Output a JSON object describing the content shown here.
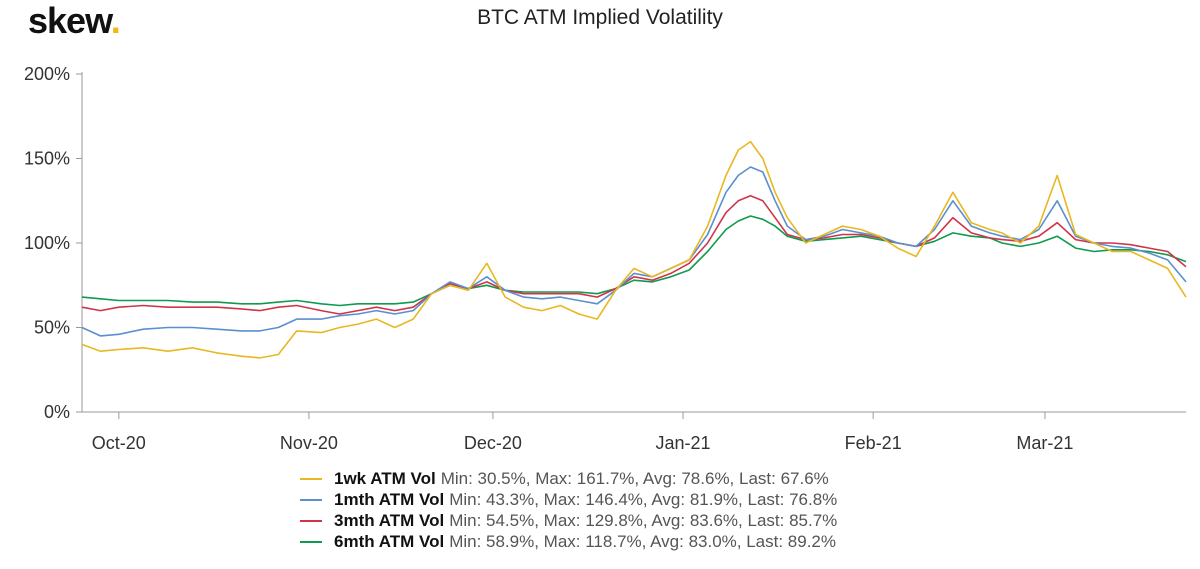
{
  "header": {
    "logo_text": "skew",
    "logo_dot": ".",
    "title": "BTC ATM Implied Volatility"
  },
  "colors": {
    "1wk": "#e8b820",
    "1mth": "#5b8fd0",
    "3mth": "#d0344a",
    "6mth": "#109a4e",
    "axis": "#999999"
  },
  "legend": [
    {
      "key": "1wk",
      "name": "1wk ATM Vol",
      "stats": "Min: 30.5%, Max: 161.7%, Avg: 78.6%, Last: 67.6%"
    },
    {
      "key": "1mth",
      "name": "1mth ATM Vol",
      "stats": "Min: 43.3%, Max: 146.4%, Avg: 81.9%, Last: 76.8%"
    },
    {
      "key": "3mth",
      "name": "3mth ATM Vol",
      "stats": "Min: 54.5%, Max: 129.8%, Avg: 83.6%, Last: 85.7%"
    },
    {
      "key": "6mth",
      "name": "6mth ATM Vol",
      "stats": "Min: 58.9%, Max: 118.7%, Avg: 83.0%, Last: 89.2%"
    }
  ],
  "chart_data": {
    "type": "line",
    "title": "BTC ATM Implied Volatility",
    "xlabel": "",
    "ylabel": "",
    "ylim": [
      0,
      200
    ],
    "xlim": [
      "2020-09-25",
      "2021-03-24"
    ],
    "y_ticks": [
      "0%",
      "50%",
      "100%",
      "150%",
      "200%"
    ],
    "x_ticks": [
      {
        "label": "Oct-20",
        "date": "2020-10-01"
      },
      {
        "label": "Nov-20",
        "date": "2020-11-01"
      },
      {
        "label": "Dec-20",
        "date": "2020-12-01"
      },
      {
        "label": "Jan-21",
        "date": "2021-01-01"
      },
      {
        "label": "Feb-21",
        "date": "2021-02-01"
      },
      {
        "label": "Mar-21",
        "date": "2021-03-01"
      }
    ],
    "grid": false,
    "legend_position": "bottom",
    "series": [
      {
        "key": "1wk",
        "name": "1wk ATM Vol",
        "x": [
          "2020-09-25",
          "2020-09-28",
          "2020-10-01",
          "2020-10-05",
          "2020-10-09",
          "2020-10-13",
          "2020-10-17",
          "2020-10-21",
          "2020-10-24",
          "2020-10-27",
          "2020-10-30",
          "2020-11-03",
          "2020-11-06",
          "2020-11-09",
          "2020-11-12",
          "2020-11-15",
          "2020-11-18",
          "2020-11-21",
          "2020-11-24",
          "2020-11-27",
          "2020-11-30",
          "2020-12-03",
          "2020-12-06",
          "2020-12-09",
          "2020-12-12",
          "2020-12-15",
          "2020-12-18",
          "2020-12-21",
          "2020-12-24",
          "2020-12-27",
          "2020-12-30",
          "2021-01-02",
          "2021-01-05",
          "2021-01-08",
          "2021-01-10",
          "2021-01-12",
          "2021-01-14",
          "2021-01-16",
          "2021-01-18",
          "2021-01-21",
          "2021-01-24",
          "2021-01-27",
          "2021-01-30",
          "2021-02-02",
          "2021-02-05",
          "2021-02-08",
          "2021-02-11",
          "2021-02-14",
          "2021-02-17",
          "2021-02-20",
          "2021-02-22",
          "2021-02-25",
          "2021-02-28",
          "2021-03-03",
          "2021-03-06",
          "2021-03-09",
          "2021-03-12",
          "2021-03-15",
          "2021-03-18",
          "2021-03-21",
          "2021-03-24"
        ],
        "y": [
          40,
          36,
          37,
          38,
          36,
          38,
          35,
          33,
          32,
          34,
          48,
          47,
          50,
          52,
          55,
          50,
          55,
          70,
          75,
          72,
          88,
          68,
          62,
          60,
          63,
          58,
          55,
          72,
          85,
          80,
          85,
          90,
          110,
          140,
          155,
          160,
          150,
          130,
          115,
          100,
          105,
          110,
          108,
          104,
          97,
          92,
          110,
          130,
          112,
          108,
          106,
          100,
          110,
          140,
          105,
          100,
          95,
          95,
          90,
          85,
          68
        ]
      },
      {
        "key": "1mth",
        "name": "1mth ATM Vol",
        "x": [
          "2020-09-25",
          "2020-09-28",
          "2020-10-01",
          "2020-10-05",
          "2020-10-09",
          "2020-10-13",
          "2020-10-17",
          "2020-10-21",
          "2020-10-24",
          "2020-10-27",
          "2020-10-30",
          "2020-11-03",
          "2020-11-06",
          "2020-11-09",
          "2020-11-12",
          "2020-11-15",
          "2020-11-18",
          "2020-11-21",
          "2020-11-24",
          "2020-11-27",
          "2020-11-30",
          "2020-12-03",
          "2020-12-06",
          "2020-12-09",
          "2020-12-12",
          "2020-12-15",
          "2020-12-18",
          "2020-12-21",
          "2020-12-24",
          "2020-12-27",
          "2020-12-30",
          "2021-01-02",
          "2021-01-05",
          "2021-01-08",
          "2021-01-10",
          "2021-01-12",
          "2021-01-14",
          "2021-01-16",
          "2021-01-18",
          "2021-01-21",
          "2021-01-24",
          "2021-01-27",
          "2021-01-30",
          "2021-02-02",
          "2021-02-05",
          "2021-02-08",
          "2021-02-11",
          "2021-02-14",
          "2021-02-17",
          "2021-02-20",
          "2021-02-22",
          "2021-02-25",
          "2021-02-28",
          "2021-03-03",
          "2021-03-06",
          "2021-03-09",
          "2021-03-12",
          "2021-03-15",
          "2021-03-18",
          "2021-03-21",
          "2021-03-24"
        ],
        "y": [
          50,
          45,
          46,
          49,
          50,
          50,
          49,
          48,
          48,
          50,
          55,
          55,
          57,
          58,
          60,
          58,
          60,
          70,
          77,
          73,
          80,
          72,
          68,
          67,
          68,
          66,
          64,
          72,
          82,
          80,
          85,
          90,
          105,
          130,
          140,
          145,
          142,
          125,
          110,
          102,
          104,
          108,
          106,
          104,
          100,
          98,
          108,
          125,
          110,
          106,
          104,
          102,
          108,
          125,
          104,
          100,
          98,
          97,
          94,
          90,
          77
        ]
      },
      {
        "key": "3mth",
        "name": "3mth ATM Vol",
        "x": [
          "2020-09-25",
          "2020-09-28",
          "2020-10-01",
          "2020-10-05",
          "2020-10-09",
          "2020-10-13",
          "2020-10-17",
          "2020-10-21",
          "2020-10-24",
          "2020-10-27",
          "2020-10-30",
          "2020-11-03",
          "2020-11-06",
          "2020-11-09",
          "2020-11-12",
          "2020-11-15",
          "2020-11-18",
          "2020-11-21",
          "2020-11-24",
          "2020-11-27",
          "2020-11-30",
          "2020-12-03",
          "2020-12-06",
          "2020-12-09",
          "2020-12-12",
          "2020-12-15",
          "2020-12-18",
          "2020-12-21",
          "2020-12-24",
          "2020-12-27",
          "2020-12-30",
          "2021-01-02",
          "2021-01-05",
          "2021-01-08",
          "2021-01-10",
          "2021-01-12",
          "2021-01-14",
          "2021-01-16",
          "2021-01-18",
          "2021-01-21",
          "2021-01-24",
          "2021-01-27",
          "2021-01-30",
          "2021-02-02",
          "2021-02-05",
          "2021-02-08",
          "2021-02-11",
          "2021-02-14",
          "2021-02-17",
          "2021-02-20",
          "2021-02-22",
          "2021-02-25",
          "2021-02-28",
          "2021-03-03",
          "2021-03-06",
          "2021-03-09",
          "2021-03-12",
          "2021-03-15",
          "2021-03-18",
          "2021-03-21",
          "2021-03-24"
        ],
        "y": [
          62,
          60,
          62,
          63,
          62,
          62,
          62,
          61,
          60,
          62,
          63,
          60,
          58,
          60,
          62,
          60,
          62,
          70,
          76,
          73,
          77,
          72,
          70,
          70,
          70,
          70,
          68,
          73,
          80,
          78,
          82,
          88,
          100,
          118,
          125,
          128,
          125,
          115,
          105,
          102,
          103,
          105,
          105,
          103,
          100,
          98,
          103,
          115,
          106,
          103,
          102,
          101,
          104,
          112,
          102,
          100,
          100,
          99,
          97,
          95,
          86
        ]
      },
      {
        "key": "6mth",
        "name": "6mth ATM Vol",
        "x": [
          "2020-09-25",
          "2020-09-28",
          "2020-10-01",
          "2020-10-05",
          "2020-10-09",
          "2020-10-13",
          "2020-10-17",
          "2020-10-21",
          "2020-10-24",
          "2020-10-27",
          "2020-10-30",
          "2020-11-03",
          "2020-11-06",
          "2020-11-09",
          "2020-11-12",
          "2020-11-15",
          "2020-11-18",
          "2020-11-21",
          "2020-11-24",
          "2020-11-27",
          "2020-11-30",
          "2020-12-03",
          "2020-12-06",
          "2020-12-09",
          "2020-12-12",
          "2020-12-15",
          "2020-12-18",
          "2020-12-21",
          "2020-12-24",
          "2020-12-27",
          "2020-12-30",
          "2021-01-02",
          "2021-01-05",
          "2021-01-08",
          "2021-01-10",
          "2021-01-12",
          "2021-01-14",
          "2021-01-16",
          "2021-01-18",
          "2021-01-21",
          "2021-01-24",
          "2021-01-27",
          "2021-01-30",
          "2021-02-02",
          "2021-02-05",
          "2021-02-08",
          "2021-02-11",
          "2021-02-14",
          "2021-02-17",
          "2021-02-20",
          "2021-02-22",
          "2021-02-25",
          "2021-02-28",
          "2021-03-03",
          "2021-03-06",
          "2021-03-09",
          "2021-03-12",
          "2021-03-15",
          "2021-03-18",
          "2021-03-21",
          "2021-03-24"
        ],
        "y": [
          68,
          67,
          66,
          66,
          66,
          65,
          65,
          64,
          64,
          65,
          66,
          64,
          63,
          64,
          64,
          64,
          65,
          70,
          75,
          73,
          75,
          72,
          71,
          71,
          71,
          71,
          70,
          73,
          78,
          77,
          80,
          84,
          95,
          108,
          113,
          116,
          114,
          110,
          104,
          101,
          102,
          103,
          104,
          102,
          100,
          98,
          101,
          106,
          104,
          103,
          100,
          98,
          100,
          104,
          97,
          95,
          96,
          96,
          95,
          93,
          89
        ]
      }
    ]
  }
}
